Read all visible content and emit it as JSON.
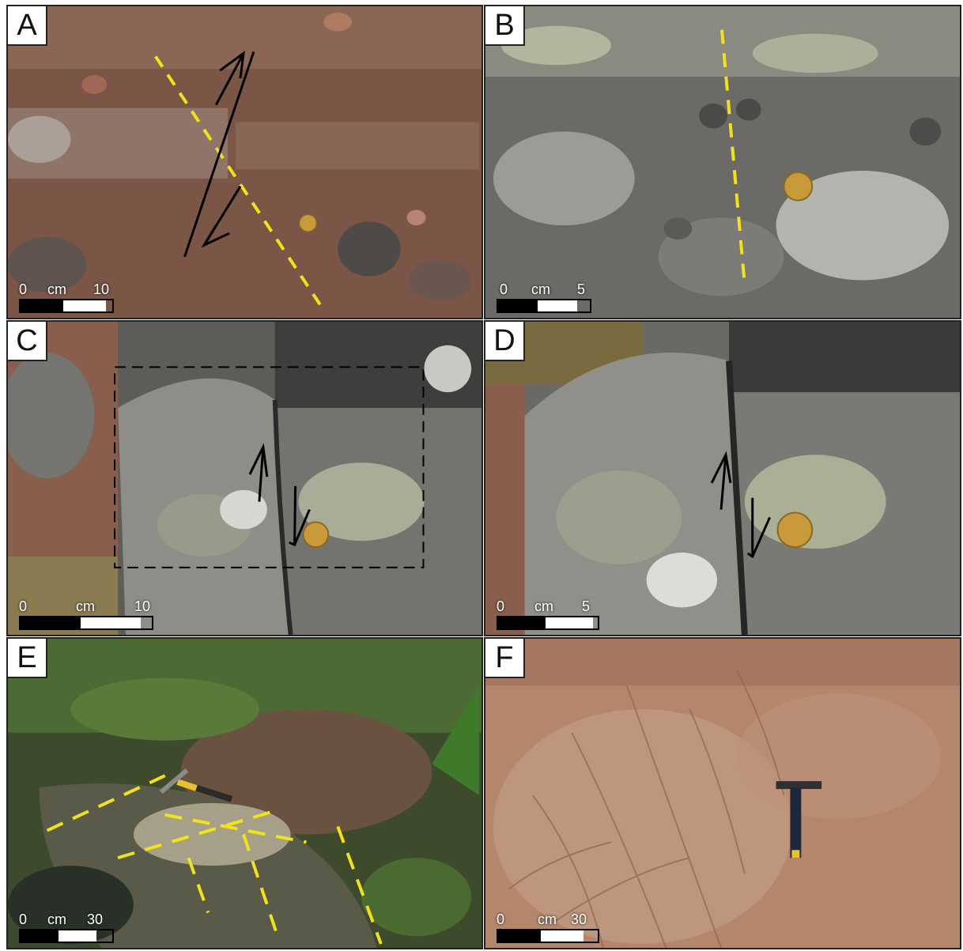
{
  "panels": [
    {
      "id": "A",
      "label": "A",
      "scale": {
        "start": "0",
        "unit": "cm",
        "end": "10"
      }
    },
    {
      "id": "B",
      "label": "B",
      "scale": {
        "start": "0",
        "unit": "cm",
        "end": "5"
      }
    },
    {
      "id": "C",
      "label": "C",
      "scale": {
        "start": "0",
        "unit": "cm",
        "end": "10"
      }
    },
    {
      "id": "D",
      "label": "D",
      "scale": {
        "start": "0",
        "unit": "cm",
        "end": "5"
      }
    },
    {
      "id": "E",
      "label": "E",
      "scale": {
        "start": "0",
        "unit": "cm",
        "end": "30"
      }
    },
    {
      "id": "F",
      "label": "F",
      "scale": {
        "start": "0",
        "unit": "cm",
        "end": "30"
      }
    }
  ],
  "colors": {
    "fault_trace": "#f2e21b",
    "arrow": "#000000",
    "rock_red": "#7a4a3a",
    "rock_gray": "#8a8a88",
    "lichen": "#c9d3b8",
    "vegetation": "#3e5a2a",
    "sandstone": "#b88a70"
  }
}
